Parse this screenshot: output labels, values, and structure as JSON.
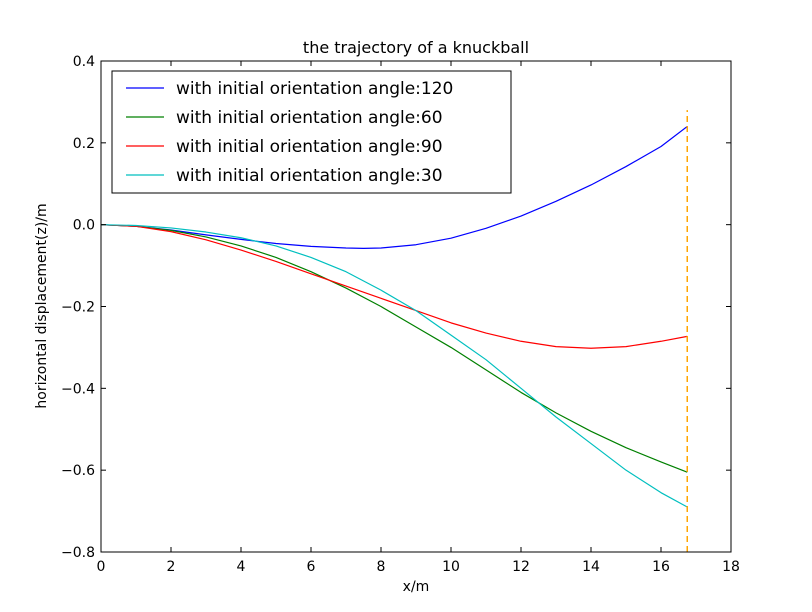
{
  "chart_data": {
    "type": "line",
    "title": "the trajectory of a knuckball",
    "xlabel": "x/m",
    "ylabel": "horizontal displacement(z)/m",
    "xlim": [
      0,
      18
    ],
    "ylim": [
      -0.8,
      0.4
    ],
    "xticks": [
      0,
      2,
      4,
      6,
      8,
      10,
      12,
      14,
      16,
      18
    ],
    "yticks": [
      -0.8,
      -0.6,
      -0.4,
      -0.2,
      0.0,
      0.2,
      0.4
    ],
    "xtick_labels": [
      "0",
      "2",
      "4",
      "6",
      "8",
      "10",
      "12",
      "14",
      "16",
      "18"
    ],
    "ytick_labels": [
      "−0.8",
      "−0.6",
      "−0.4",
      "−0.2",
      "0.0",
      "0.2",
      "0.4"
    ],
    "grid": false,
    "legend_position": "top-left",
    "series": [
      {
        "name": "with initial orientation angle:120",
        "color": "#0000ff",
        "x": [
          0,
          1,
          2,
          3,
          4,
          5,
          6,
          7,
          7.5,
          8,
          9,
          10,
          11,
          12,
          13,
          14,
          15,
          16,
          16.75
        ],
        "y": [
          0,
          -0.004,
          -0.013,
          -0.025,
          -0.036,
          -0.046,
          -0.053,
          -0.057,
          -0.058,
          -0.057,
          -0.049,
          -0.033,
          -0.009,
          0.021,
          0.057,
          0.097,
          0.142,
          0.191,
          0.24
        ]
      },
      {
        "name": "with initial orientation angle:60",
        "color": "#008000",
        "x": [
          0,
          1,
          2,
          3,
          4,
          5,
          6,
          7,
          8,
          9,
          10,
          11,
          12,
          13,
          14,
          15,
          16,
          16.75
        ],
        "y": [
          0,
          -0.004,
          -0.014,
          -0.03,
          -0.052,
          -0.08,
          -0.115,
          -0.155,
          -0.2,
          -0.25,
          -0.3,
          -0.355,
          -0.41,
          -0.46,
          -0.505,
          -0.545,
          -0.58,
          -0.605
        ]
      },
      {
        "name": "with initial orientation angle:90",
        "color": "#ff0000",
        "x": [
          0,
          1,
          2,
          3,
          4,
          5,
          6,
          7,
          8,
          9,
          10,
          11,
          12,
          13,
          14,
          15,
          16,
          16.75
        ],
        "y": [
          0,
          -0.004,
          -0.017,
          -0.037,
          -0.062,
          -0.09,
          -0.12,
          -0.15,
          -0.18,
          -0.21,
          -0.24,
          -0.265,
          -0.285,
          -0.298,
          -0.302,
          -0.298,
          -0.285,
          -0.273
        ]
      },
      {
        "name": "with initial orientation angle:30",
        "color": "#00bfbf",
        "x": [
          0,
          1,
          2,
          3,
          4,
          5,
          6,
          7,
          8,
          9,
          10,
          11,
          12,
          13,
          14,
          15,
          16,
          16.75
        ],
        "y": [
          0,
          -0.002,
          -0.008,
          -0.018,
          -0.032,
          -0.052,
          -0.08,
          -0.115,
          -0.16,
          -0.21,
          -0.27,
          -0.33,
          -0.4,
          -0.47,
          -0.535,
          -0.6,
          -0.655,
          -0.69
        ]
      }
    ],
    "reference_line": {
      "x": 16.75,
      "y_range": [
        -0.8,
        0.28
      ],
      "color": "#ffa500",
      "style": "dashed"
    }
  }
}
